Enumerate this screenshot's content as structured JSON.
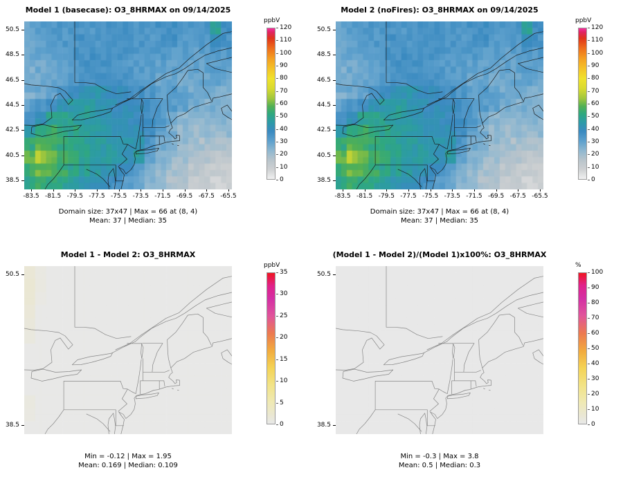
{
  "chart_data": [
    {
      "id": "model1_basecase",
      "type": "heatmap",
      "title": "Model 1 (basecase): O3_8HRMAX on 09/14/2025",
      "variable": "O3_8HRMAX",
      "date": "09/14/2025",
      "units": "ppbV",
      "x_range": [
        -84.13,
        -65.18
      ],
      "y_range": [
        37.79,
        51.16
      ],
      "x_ticks": [
        -83.5,
        -81.5,
        -79.5,
        -77.5,
        -75.5,
        -73.5,
        -71.5,
        -69.5,
        -67.5,
        -65.5
      ],
      "y_ticks": [
        50.5,
        48.5,
        46.5,
        44.5,
        42.5,
        40.5,
        38.5
      ],
      "caption_line1": "Domain size: 37x47 | Max = 66 at (8, 4)",
      "caption_line2": "Mean: 37 |  Median: 35",
      "stats": {
        "domain_size": "37x47",
        "max": 66,
        "max_at": "(8, 4)",
        "mean": 37,
        "median": 35
      },
      "colorbar": {
        "label": "ppbV",
        "min": 0,
        "max": 120,
        "ticks": [
          0,
          10,
          20,
          30,
          40,
          50,
          60,
          70,
          80,
          90,
          100,
          110,
          120
        ],
        "stops": [
          [
            0,
            "#f0f0f0"
          ],
          [
            8,
            "#cdd0d2"
          ],
          [
            15,
            "#b9c4cb"
          ],
          [
            22,
            "#93b9d0"
          ],
          [
            30,
            "#5fa1cd"
          ],
          [
            38,
            "#3a8ac0"
          ],
          [
            45,
            "#2d9aa8"
          ],
          [
            52,
            "#2fa87e"
          ],
          [
            58,
            "#53b054"
          ],
          [
            64,
            "#9ec63d"
          ],
          [
            72,
            "#d8da30"
          ],
          [
            80,
            "#f0e22c"
          ],
          [
            88,
            "#f4c228"
          ],
          [
            96,
            "#f49f22"
          ],
          [
            104,
            "#ee6e1c"
          ],
          [
            112,
            "#e03419"
          ],
          [
            117,
            "#e02462"
          ],
          [
            120,
            "#f4309e"
          ]
        ]
      },
      "grid": [
        [
          30,
          31,
          32,
          33,
          34,
          34,
          33,
          34,
          35,
          34,
          33,
          34,
          35,
          36,
          34,
          33,
          34,
          48,
          36
        ],
        [
          29,
          30,
          31,
          33,
          34,
          35,
          34,
          35,
          36,
          35,
          34,
          33,
          34,
          35,
          33,
          32,
          33,
          38,
          35
        ],
        [
          27,
          29,
          30,
          32,
          34,
          35,
          36,
          36,
          35,
          34,
          33,
          32,
          33,
          32,
          31,
          30,
          31,
          33,
          32
        ],
        [
          26,
          27,
          29,
          31,
          33,
          35,
          36,
          35,
          34,
          33,
          32,
          31,
          30,
          30,
          29,
          29,
          30,
          31,
          30
        ],
        [
          25,
          27,
          28,
          30,
          33,
          35,
          36,
          37,
          36,
          34,
          32,
          30,
          29,
          28,
          28,
          27,
          28,
          29,
          28
        ],
        [
          26,
          28,
          30,
          34,
          37,
          40,
          42,
          41,
          39,
          37,
          36,
          33,
          31,
          33,
          31,
          27,
          26,
          27,
          26
        ],
        [
          30,
          34,
          38,
          42,
          45,
          46,
          44,
          42,
          40,
          39,
          38,
          36,
          33,
          32,
          30,
          26,
          25,
          26,
          25
        ],
        [
          36,
          42,
          48,
          50,
          48,
          46,
          44,
          43,
          42,
          40,
          38,
          36,
          33,
          28,
          24,
          22,
          23,
          24,
          23
        ],
        [
          44,
          50,
          54,
          52,
          50,
          47,
          45,
          44,
          43,
          42,
          40,
          36,
          30,
          26,
          22,
          20,
          21,
          22,
          21
        ],
        [
          52,
          58,
          56,
          53,
          50,
          48,
          46,
          45,
          44,
          43,
          42,
          34,
          28,
          24,
          21,
          19,
          18,
          19,
          18
        ],
        [
          58,
          66,
          60,
          55,
          52,
          50,
          47,
          46,
          44,
          42,
          46,
          30,
          24,
          21,
          19,
          17,
          15,
          14,
          13
        ],
        [
          55,
          60,
          58,
          54,
          50,
          48,
          46,
          43,
          40,
          36,
          30,
          25,
          22,
          19,
          17,
          14,
          12,
          10,
          9
        ],
        [
          50,
          54,
          52,
          49,
          46,
          44,
          42,
          39,
          36,
          32,
          27,
          23,
          20,
          17,
          15,
          12,
          10,
          8,
          8
        ]
      ]
    },
    {
      "id": "model2_nofires",
      "type": "heatmap",
      "title": "Model 2 (noFires): O3_8HRMAX on 09/14/2025",
      "variable": "O3_8HRMAX",
      "date": "09/14/2025",
      "units": "ppbV",
      "x_range": [
        -84.13,
        -65.18
      ],
      "y_range": [
        37.79,
        51.16
      ],
      "x_ticks": [
        -83.5,
        -81.5,
        -79.5,
        -77.5,
        -75.5,
        -73.5,
        -71.5,
        -69.5,
        -67.5,
        -65.5
      ],
      "y_ticks": [
        50.5,
        48.5,
        46.5,
        44.5,
        42.5,
        40.5,
        38.5
      ],
      "caption_line1": "Domain size: 37x47 | Max = 66 at (8, 4)",
      "caption_line2": "Mean: 37 |  Median: 35",
      "stats": {
        "domain_size": "37x47",
        "max": 66,
        "max_at": "(8, 4)",
        "mean": 37,
        "median": 35
      },
      "colorbar": {
        "label": "ppbV",
        "min": 0,
        "max": 120,
        "ticks": [
          0,
          10,
          20,
          30,
          40,
          50,
          60,
          70,
          80,
          90,
          100,
          110,
          120
        ],
        "stops": [
          [
            0,
            "#f0f0f0"
          ],
          [
            8,
            "#cdd0d2"
          ],
          [
            15,
            "#b9c4cb"
          ],
          [
            22,
            "#93b9d0"
          ],
          [
            30,
            "#5fa1cd"
          ],
          [
            38,
            "#3a8ac0"
          ],
          [
            45,
            "#2d9aa8"
          ],
          [
            52,
            "#2fa87e"
          ],
          [
            58,
            "#53b054"
          ],
          [
            64,
            "#9ec63d"
          ],
          [
            72,
            "#d8da30"
          ],
          [
            80,
            "#f0e22c"
          ],
          [
            88,
            "#f4c228"
          ],
          [
            96,
            "#f49f22"
          ],
          [
            104,
            "#ee6e1c"
          ],
          [
            112,
            "#e03419"
          ],
          [
            117,
            "#e02462"
          ],
          [
            120,
            "#f4309e"
          ]
        ]
      },
      "grid": [
        [
          30,
          31,
          32,
          33,
          34,
          34,
          33,
          34,
          35,
          34,
          33,
          34,
          35,
          36,
          34,
          33,
          34,
          48,
          36
        ],
        [
          29,
          30,
          31,
          33,
          34,
          35,
          34,
          35,
          36,
          35,
          34,
          33,
          34,
          35,
          33,
          32,
          33,
          38,
          35
        ],
        [
          27,
          29,
          30,
          32,
          34,
          35,
          36,
          36,
          35,
          34,
          33,
          32,
          33,
          32,
          31,
          30,
          31,
          33,
          32
        ],
        [
          26,
          27,
          29,
          31,
          33,
          35,
          36,
          35,
          34,
          33,
          32,
          31,
          30,
          30,
          29,
          29,
          30,
          31,
          30
        ],
        [
          25,
          27,
          28,
          30,
          33,
          35,
          36,
          37,
          36,
          34,
          32,
          30,
          29,
          28,
          28,
          27,
          28,
          29,
          28
        ],
        [
          26,
          28,
          30,
          34,
          37,
          40,
          42,
          41,
          39,
          37,
          36,
          33,
          31,
          33,
          31,
          27,
          26,
          27,
          26
        ],
        [
          30,
          34,
          38,
          42,
          45,
          46,
          44,
          42,
          40,
          39,
          38,
          36,
          33,
          32,
          30,
          26,
          25,
          26,
          25
        ],
        [
          36,
          42,
          48,
          50,
          48,
          46,
          44,
          43,
          42,
          40,
          38,
          36,
          33,
          28,
          24,
          22,
          23,
          24,
          23
        ],
        [
          44,
          50,
          54,
          52,
          50,
          47,
          45,
          44,
          43,
          42,
          40,
          36,
          30,
          26,
          22,
          20,
          21,
          22,
          21
        ],
        [
          52,
          58,
          56,
          53,
          50,
          48,
          46,
          45,
          44,
          43,
          42,
          34,
          28,
          24,
          21,
          19,
          18,
          19,
          18
        ],
        [
          58,
          66,
          60,
          55,
          52,
          50,
          47,
          46,
          44,
          42,
          46,
          30,
          24,
          21,
          19,
          17,
          15,
          14,
          13
        ],
        [
          55,
          60,
          58,
          54,
          50,
          48,
          46,
          43,
          40,
          36,
          30,
          25,
          22,
          19,
          17,
          14,
          12,
          10,
          9
        ],
        [
          50,
          54,
          52,
          49,
          46,
          44,
          42,
          39,
          36,
          32,
          27,
          23,
          20,
          17,
          15,
          12,
          10,
          8,
          8
        ]
      ]
    },
    {
      "id": "difference",
      "type": "heatmap",
      "title": "Model 1 - Model 2: O3_8HRMAX",
      "variable": "O3_8HRMAX",
      "units": "ppbV",
      "x_range": [
        -84.13,
        -65.18
      ],
      "y_range": [
        37.79,
        51.16
      ],
      "x_ticks": [],
      "y_ticks": [
        50.5,
        38.5
      ],
      "caption_line1": "Min = -0.12 | Max = 1.95",
      "caption_line2": "Mean: 0.169 |  Median: 0.109",
      "stats": {
        "min": -0.12,
        "max": 1.95,
        "mean": 0.169,
        "median": 0.109
      },
      "colorbar": {
        "label": "ppbV",
        "min": 0,
        "max": 35,
        "ticks": [
          0,
          5,
          10,
          15,
          20,
          25,
          30,
          35
        ],
        "stops": [
          [
            0,
            "#e8e8e8"
          ],
          [
            2,
            "#eae7d2"
          ],
          [
            5,
            "#efe9b4"
          ],
          [
            9,
            "#f2e387"
          ],
          [
            13,
            "#f4d355"
          ],
          [
            17,
            "#f2ab3e"
          ],
          [
            21,
            "#ec7a50"
          ],
          [
            25,
            "#e0549b"
          ],
          [
            29,
            "#d42fa4"
          ],
          [
            32,
            "#e0218a"
          ],
          [
            35,
            "#f01420"
          ]
        ]
      },
      "grid": {
        "fill": 0.1,
        "overrides": [
          [
            0,
            0,
            1.6
          ],
          [
            1,
            0,
            1.95
          ],
          [
            2,
            0,
            1.8
          ],
          [
            3,
            0,
            1.5
          ],
          [
            4,
            0,
            1.2
          ],
          [
            5,
            0,
            0.9
          ],
          [
            0,
            1,
            0.6
          ],
          [
            1,
            1,
            0.7
          ],
          [
            2,
            1,
            0.5
          ],
          [
            10,
            0,
            0.8
          ],
          [
            11,
            0,
            0.6
          ]
        ]
      }
    },
    {
      "id": "percent_difference",
      "type": "heatmap",
      "title": "(Model 1 - Model 2)/(Model 1)x100%: O3_8HRMAX",
      "variable": "O3_8HRMAX",
      "units": "%",
      "x_range": [
        -84.13,
        -65.18
      ],
      "y_range": [
        37.79,
        51.16
      ],
      "x_ticks": [],
      "y_ticks": [
        50.5,
        38.5
      ],
      "caption_line1": "Min = -0.3 | Max = 3.8",
      "caption_line2": "Mean: 0.5 |  Median: 0.3",
      "stats": {
        "min": -0.3,
        "max": 3.8,
        "mean": 0.5,
        "median": 0.3
      },
      "colorbar": {
        "label": "%",
        "min": 0,
        "max": 100,
        "ticks": [
          0,
          10,
          20,
          30,
          40,
          50,
          60,
          70,
          80,
          90,
          100
        ],
        "stops": [
          [
            0,
            "#e8e8e8"
          ],
          [
            6,
            "#eae7d2"
          ],
          [
            14,
            "#efe9b4"
          ],
          [
            25,
            "#f2e387"
          ],
          [
            37,
            "#f4d355"
          ],
          [
            48,
            "#f2ab3e"
          ],
          [
            60,
            "#ec7a50"
          ],
          [
            72,
            "#e0549b"
          ],
          [
            83,
            "#d42fa4"
          ],
          [
            92,
            "#e0218a"
          ],
          [
            100,
            "#f01420"
          ]
        ]
      }
    }
  ]
}
